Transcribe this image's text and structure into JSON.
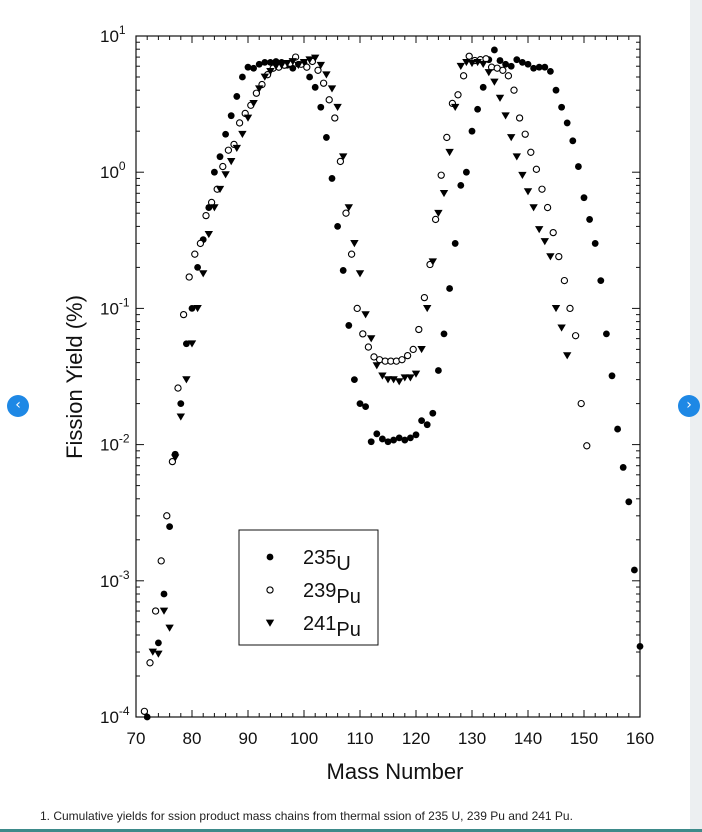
{
  "nav": {
    "prev_icon": "‹",
    "next_icon": "›"
  },
  "caption": "1. Cumulative yields for ssion product mass chains from thermal ssion of 235 U, 239 Pu and 241 Pu.",
  "chart_data": {
    "type": "scatter",
    "xlabel": "Mass Number",
    "ylabel": "Fission Yield (%)",
    "xlim": [
      70,
      160
    ],
    "ylim": [
      0.0001,
      10
    ],
    "yscale": "log",
    "xticks": [
      70,
      80,
      90,
      100,
      110,
      120,
      130,
      140,
      150,
      160
    ],
    "yticks": [
      {
        "value": 0.0001,
        "base": "10",
        "exp": "-4"
      },
      {
        "value": 0.001,
        "base": "10",
        "exp": "-3"
      },
      {
        "value": 0.01,
        "base": "10",
        "exp": "-2"
      },
      {
        "value": 0.1,
        "base": "10",
        "exp": "-1"
      },
      {
        "value": 1,
        "base": "10",
        "exp": "0"
      },
      {
        "value": 10,
        "base": "10",
        "exp": "1"
      }
    ],
    "legend_position": "bottom-left inside plot",
    "grid": false,
    "series": [
      {
        "name": "235U",
        "label_mass": "235",
        "label_elem": "U",
        "marker": "filled-circle",
        "points": [
          [
            72,
            0.0001
          ],
          [
            74,
            0.00035
          ],
          [
            75,
            0.0008
          ],
          [
            76,
            0.0025
          ],
          [
            77,
            0.0085
          ],
          [
            78,
            0.02
          ],
          [
            79,
            0.055
          ],
          [
            80,
            0.1
          ],
          [
            81,
            0.2
          ],
          [
            82,
            0.32
          ],
          [
            83,
            0.55
          ],
          [
            84,
            1.0
          ],
          [
            85,
            1.3
          ],
          [
            86,
            1.9
          ],
          [
            87,
            2.6
          ],
          [
            88,
            3.6
          ],
          [
            89,
            5.0
          ],
          [
            90,
            5.9
          ],
          [
            91,
            5.8
          ],
          [
            92,
            6.2
          ],
          [
            93,
            6.4
          ],
          [
            94,
            6.4
          ],
          [
            95,
            6.5
          ],
          [
            96,
            6.4
          ],
          [
            97,
            6.1
          ],
          [
            98,
            5.8
          ],
          [
            99,
            6.2
          ],
          [
            100,
            6.3
          ],
          [
            101,
            5.0
          ],
          [
            102,
            4.2
          ],
          [
            103,
            3.0
          ],
          [
            104,
            1.8
          ],
          [
            105,
            0.9
          ],
          [
            106,
            0.4
          ],
          [
            107,
            0.19
          ],
          [
            108,
            0.075
          ],
          [
            109,
            0.03
          ],
          [
            110,
            0.02
          ],
          [
            111,
            0.019
          ],
          [
            112,
            0.0105
          ],
          [
            113,
            0.012
          ],
          [
            114,
            0.011
          ],
          [
            115,
            0.0105
          ],
          [
            116,
            0.0108
          ],
          [
            117,
            0.0112
          ],
          [
            118,
            0.0108
          ],
          [
            119,
            0.0112
          ],
          [
            120,
            0.0118
          ],
          [
            121,
            0.015
          ],
          [
            122,
            0.014
          ],
          [
            123,
            0.017
          ],
          [
            124,
            0.035
          ],
          [
            125,
            0.065
          ],
          [
            126,
            0.14
          ],
          [
            127,
            0.3
          ],
          [
            128,
            0.8
          ],
          [
            129,
            1.0
          ],
          [
            130,
            2.0
          ],
          [
            131,
            2.9
          ],
          [
            132,
            4.2
          ],
          [
            133,
            6.7
          ],
          [
            134,
            7.9
          ],
          [
            135,
            6.6
          ],
          [
            136,
            6.2
          ],
          [
            137,
            6.0
          ],
          [
            138,
            6.7
          ],
          [
            139,
            6.4
          ],
          [
            140,
            6.2
          ],
          [
            141,
            5.8
          ],
          [
            142,
            5.9
          ],
          [
            143,
            5.9
          ],
          [
            144,
            5.5
          ],
          [
            145,
            4.0
          ],
          [
            146,
            3.0
          ],
          [
            147,
            2.3
          ],
          [
            148,
            1.7
          ],
          [
            149,
            1.1
          ],
          [
            150,
            0.65
          ],
          [
            151,
            0.45
          ],
          [
            152,
            0.3
          ],
          [
            153,
            0.16
          ],
          [
            154,
            0.065
          ],
          [
            155,
            0.032
          ],
          [
            156,
            0.013
          ],
          [
            157,
            0.0068
          ],
          [
            158,
            0.0038
          ],
          [
            159,
            0.0012
          ],
          [
            160,
            0.00033
          ]
        ]
      },
      {
        "name": "239Pu",
        "label_mass": "239",
        "label_elem": "Pu",
        "marker": "open-circle",
        "points": [
          [
            71.5,
            0.00011
          ],
          [
            72.5,
            0.00025
          ],
          [
            73.5,
            0.0006
          ],
          [
            74.5,
            0.0014
          ],
          [
            75.5,
            0.003
          ],
          [
            76.5,
            0.0075
          ],
          [
            77.5,
            0.026
          ],
          [
            78.5,
            0.09
          ],
          [
            79.5,
            0.17
          ],
          [
            80.5,
            0.25
          ],
          [
            81.5,
            0.3
          ],
          [
            82.5,
            0.48
          ],
          [
            83.5,
            0.6
          ],
          [
            84.5,
            0.75
          ],
          [
            85.5,
            1.1
          ],
          [
            86.5,
            1.45
          ],
          [
            87.5,
            1.6
          ],
          [
            88.5,
            2.3
          ],
          [
            89.5,
            2.7
          ],
          [
            90.5,
            3.1
          ],
          [
            91.5,
            3.8
          ],
          [
            92.5,
            4.4
          ],
          [
            93.5,
            5.2
          ],
          [
            94.5,
            5.8
          ],
          [
            95.5,
            5.9
          ],
          [
            96.5,
            6.1
          ],
          [
            97.5,
            6.3
          ],
          [
            98.5,
            7.0
          ],
          [
            99.5,
            6.2
          ],
          [
            100.5,
            5.9
          ],
          [
            101.5,
            6.5
          ],
          [
            102.5,
            5.6
          ],
          [
            103.5,
            4.5
          ],
          [
            104.5,
            3.4
          ],
          [
            105.5,
            2.5
          ],
          [
            106.5,
            1.2
          ],
          [
            107.5,
            0.5
          ],
          [
            108.5,
            0.25
          ],
          [
            109.5,
            0.1
          ],
          [
            110.5,
            0.065
          ],
          [
            111.5,
            0.052
          ],
          [
            112.5,
            0.044
          ],
          [
            113.5,
            0.042
          ],
          [
            114.5,
            0.041
          ],
          [
            115.5,
            0.041
          ],
          [
            116.5,
            0.041
          ],
          [
            117.5,
            0.042
          ],
          [
            118.5,
            0.045
          ],
          [
            119.5,
            0.05
          ],
          [
            120.5,
            0.07
          ],
          [
            121.5,
            0.12
          ],
          [
            122.5,
            0.21
          ],
          [
            123.5,
            0.45
          ],
          [
            124.5,
            0.95
          ],
          [
            125.5,
            1.8
          ],
          [
            126.5,
            3.2
          ],
          [
            127.5,
            3.7
          ],
          [
            128.5,
            5.1
          ],
          [
            129.5,
            7.1
          ],
          [
            130.5,
            6.6
          ],
          [
            131.5,
            6.7
          ],
          [
            132.5,
            6.8
          ],
          [
            133.5,
            5.9
          ],
          [
            134.5,
            5.8
          ],
          [
            135.5,
            5.6
          ],
          [
            136.5,
            5.1
          ],
          [
            137.5,
            4.0
          ],
          [
            138.5,
            2.5
          ],
          [
            139.5,
            1.9
          ],
          [
            140.5,
            1.4
          ],
          [
            141.5,
            1.05
          ],
          [
            142.5,
            0.75
          ],
          [
            143.5,
            0.55
          ],
          [
            144.5,
            0.36
          ],
          [
            145.5,
            0.24
          ],
          [
            146.5,
            0.16
          ],
          [
            147.5,
            0.1
          ],
          [
            148.5,
            0.063
          ],
          [
            149.5,
            0.02
          ],
          [
            150.5,
            0.0098
          ]
        ]
      },
      {
        "name": "241Pu",
        "label_mass": "241",
        "label_elem": "Pu",
        "marker": "filled-triangle",
        "points": [
          [
            73,
            0.0003
          ],
          [
            74,
            0.00029
          ],
          [
            75,
            0.0006
          ],
          [
            76,
            0.00045
          ],
          [
            77,
            0.008
          ],
          [
            78,
            0.016
          ],
          [
            79,
            0.03
          ],
          [
            80,
            0.055
          ],
          [
            81,
            0.1
          ],
          [
            82,
            0.18
          ],
          [
            83,
            0.35
          ],
          [
            84,
            0.55
          ],
          [
            85,
            0.75
          ],
          [
            86,
            0.96
          ],
          [
            87,
            1.2
          ],
          [
            88,
            1.5
          ],
          [
            89,
            1.9
          ],
          [
            90,
            2.5
          ],
          [
            91,
            3.2
          ],
          [
            92,
            4.1
          ],
          [
            93,
            5.0
          ],
          [
            94,
            5.5
          ],
          [
            95,
            6.0
          ],
          [
            96,
            6.1
          ],
          [
            97,
            6.3
          ],
          [
            98,
            6.5
          ],
          [
            99,
            6.1
          ],
          [
            100,
            6.4
          ],
          [
            101,
            6.7
          ],
          [
            102,
            6.9
          ],
          [
            103,
            6.1
          ],
          [
            104,
            5.2
          ],
          [
            105,
            4.1
          ],
          [
            106,
            3.0
          ],
          [
            107,
            1.3
          ],
          [
            108,
            0.55
          ],
          [
            109,
            0.3
          ],
          [
            110,
            0.18
          ],
          [
            111,
            0.09
          ],
          [
            112,
            0.06
          ],
          [
            113,
            0.038
          ],
          [
            114,
            0.032
          ],
          [
            115,
            0.03
          ],
          [
            116,
            0.03
          ],
          [
            117,
            0.029
          ],
          [
            118,
            0.031
          ],
          [
            119,
            0.031
          ],
          [
            120,
            0.033
          ],
          [
            121,
            0.05
          ],
          [
            122,
            0.1
          ],
          [
            123,
            0.22
          ],
          [
            124,
            0.5
          ],
          [
            125,
            0.7
          ],
          [
            126,
            1.4
          ],
          [
            127,
            3.0
          ],
          [
            128,
            6.0
          ],
          [
            129,
            6.4
          ],
          [
            130,
            6.3
          ],
          [
            131,
            6.4
          ],
          [
            132,
            6.2
          ],
          [
            133,
            5.4
          ],
          [
            134,
            4.6
          ],
          [
            135,
            3.5
          ],
          [
            136,
            2.6
          ],
          [
            137,
            1.8
          ],
          [
            138,
            1.3
          ],
          [
            139,
            0.95
          ],
          [
            140,
            0.72
          ],
          [
            141,
            0.55
          ],
          [
            142,
            0.38
          ],
          [
            143,
            0.31
          ],
          [
            144,
            0.24
          ],
          [
            145,
            0.1
          ],
          [
            146,
            0.072
          ],
          [
            147,
            0.045
          ]
        ]
      }
    ]
  }
}
